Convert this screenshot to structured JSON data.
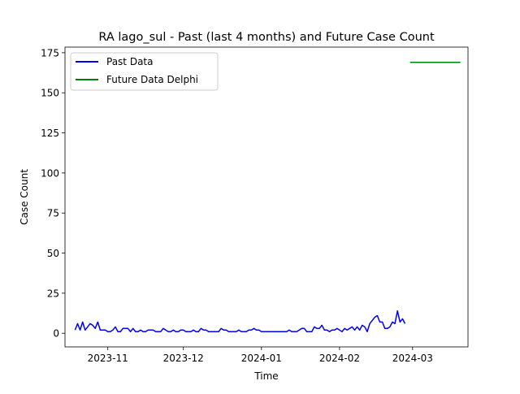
{
  "chart_data": {
    "type": "line",
    "title": "RA lago_sul - Past (last 4 months) and Future Case Count",
    "xlabel": "Time",
    "ylabel": "Case Count",
    "x_range": [
      "2023-10-15",
      "2024-03-23"
    ],
    "ylim": [
      -8.5,
      178.5
    ],
    "y_ticks": [
      0,
      25,
      50,
      75,
      100,
      125,
      150,
      175
    ],
    "x_ticks": [
      {
        "date": "2023-11-01",
        "label": "2023-11"
      },
      {
        "date": "2023-12-01",
        "label": "2023-12"
      },
      {
        "date": "2024-01-01",
        "label": "2024-01"
      },
      {
        "date": "2024-02-01",
        "label": "2024-02"
      },
      {
        "date": "2024-03-01",
        "label": "2024-03"
      }
    ],
    "grid": false,
    "legend_position": "upper left",
    "series": [
      {
        "name": "Past Data",
        "color": "#0000ff",
        "start_date": "2023-10-19",
        "values": [
          2,
          6,
          2,
          7,
          2,
          4,
          6,
          5,
          3,
          7,
          2,
          2,
          2,
          1,
          1,
          2,
          4,
          1,
          1,
          3,
          3,
          3,
          1,
          3,
          1,
          1,
          2,
          1,
          1,
          2,
          2,
          2,
          1,
          1,
          1,
          3,
          2,
          1,
          1,
          2,
          1,
          1,
          2,
          2,
          1,
          1,
          1,
          2,
          1,
          1,
          3,
          2,
          2,
          1,
          1,
          1,
          1,
          1,
          3,
          2,
          2,
          1,
          1,
          1,
          1,
          2,
          1,
          1,
          1,
          2,
          2,
          3,
          2,
          2,
          1,
          1,
          1,
          1,
          1,
          1,
          1,
          1,
          1,
          1,
          1,
          2,
          1,
          1,
          1,
          2,
          3,
          3,
          1,
          1,
          1,
          4,
          3,
          3,
          5,
          2,
          2,
          1,
          2,
          2,
          3,
          2,
          1,
          3,
          2,
          3,
          4,
          2,
          4,
          2,
          5,
          4,
          1,
          6,
          8,
          10,
          11,
          7,
          7,
          3,
          3,
          4,
          7,
          6,
          14,
          7,
          9,
          6
        ]
      },
      {
        "name": "Future Data Delphi",
        "color": "#008000",
        "start_date": "2024-02-29",
        "values": [
          169,
          169,
          169,
          169,
          169,
          169,
          169,
          169,
          169,
          169,
          169,
          169,
          169,
          169,
          169,
          169,
          169,
          169,
          169,
          169,
          169
        ]
      }
    ]
  }
}
